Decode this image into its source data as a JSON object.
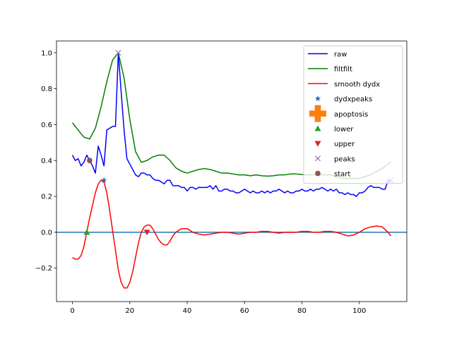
{
  "chart_data": {
    "type": "line",
    "title": "",
    "xlabel": "",
    "ylabel": "",
    "xlim": [
      -5.55,
      116.55
    ],
    "ylim": [
      -0.386,
      1.066
    ],
    "xticks": [
      0,
      20,
      40,
      60,
      80,
      100
    ],
    "xtick_labels": [
      "0",
      "20",
      "40",
      "60",
      "80",
      "100"
    ],
    "yticks": [
      -0.2,
      0.0,
      0.2,
      0.4,
      0.6,
      0.8,
      1.0
    ],
    "ytick_labels": [
      "−0.2",
      "0.0",
      "0.2",
      "0.4",
      "0.6",
      "0.8",
      "1.0"
    ],
    "grid": false,
    "legend_position": "upper-right",
    "hline": {
      "y": 0,
      "color": "#1f77b4"
    },
    "series": [
      {
        "name": "raw",
        "kind": "line",
        "color": "#0000ff",
        "x": [
          0,
          1,
          2,
          3,
          4,
          5,
          6,
          7,
          8,
          9,
          10,
          11,
          12,
          13,
          14,
          15,
          16,
          17,
          18,
          19,
          20,
          21,
          22,
          23,
          24,
          25,
          26,
          27,
          28,
          29,
          30,
          31,
          32,
          33,
          34,
          35,
          36,
          37,
          38,
          39,
          40,
          41,
          42,
          43,
          44,
          45,
          46,
          47,
          48,
          49,
          50,
          51,
          52,
          53,
          54,
          55,
          56,
          57,
          58,
          59,
          60,
          61,
          62,
          63,
          64,
          65,
          66,
          67,
          68,
          69,
          70,
          71,
          72,
          73,
          74,
          75,
          76,
          77,
          78,
          79,
          80,
          81,
          82,
          83,
          84,
          85,
          86,
          87,
          88,
          89,
          90,
          91,
          92,
          93,
          94,
          95,
          96,
          97,
          98,
          99,
          100,
          101,
          102,
          103,
          104,
          105,
          106,
          107,
          108,
          109,
          110,
          111
        ],
        "y": [
          0.43,
          0.4,
          0.41,
          0.37,
          0.39,
          0.43,
          0.4,
          0.37,
          0.33,
          0.48,
          0.43,
          0.37,
          0.57,
          0.58,
          0.59,
          0.59,
          1.0,
          0.78,
          0.57,
          0.41,
          0.38,
          0.35,
          0.32,
          0.31,
          0.33,
          0.33,
          0.32,
          0.32,
          0.3,
          0.29,
          0.29,
          0.28,
          0.27,
          0.29,
          0.29,
          0.26,
          0.26,
          0.26,
          0.25,
          0.25,
          0.23,
          0.25,
          0.25,
          0.24,
          0.25,
          0.25,
          0.25,
          0.25,
          0.26,
          0.24,
          0.26,
          0.23,
          0.23,
          0.24,
          0.24,
          0.23,
          0.23,
          0.22,
          0.22,
          0.23,
          0.24,
          0.23,
          0.22,
          0.23,
          0.22,
          0.22,
          0.23,
          0.22,
          0.23,
          0.22,
          0.23,
          0.23,
          0.24,
          0.23,
          0.22,
          0.23,
          0.22,
          0.22,
          0.23,
          0.23,
          0.24,
          0.23,
          0.23,
          0.24,
          0.23,
          0.24,
          0.24,
          0.25,
          0.24,
          0.23,
          0.24,
          0.23,
          0.24,
          0.22,
          0.22,
          0.21,
          0.22,
          0.21,
          0.21,
          0.2,
          0.22,
          0.22,
          0.23,
          0.25,
          0.26,
          0.25,
          0.25,
          0.25,
          0.24,
          0.24,
          0.29,
          0.28
        ]
      },
      {
        "name": "filtfilt",
        "kind": "line",
        "color": "#008000",
        "x": [
          0,
          2,
          4,
          6,
          8,
          10,
          12,
          14,
          16,
          18,
          20,
          22,
          24,
          26,
          28,
          30,
          32,
          34,
          36,
          38,
          40,
          42,
          44,
          46,
          48,
          50,
          52,
          54,
          56,
          58,
          60,
          62,
          64,
          66,
          68,
          70,
          72,
          74,
          76,
          78,
          80,
          82,
          84,
          86,
          88,
          90,
          92,
          94,
          96,
          98,
          100,
          102,
          104,
          106,
          108,
          110,
          111
        ],
        "y": [
          0.61,
          0.57,
          0.53,
          0.52,
          0.58,
          0.7,
          0.84,
          0.96,
          1.0,
          0.86,
          0.63,
          0.45,
          0.39,
          0.4,
          0.42,
          0.43,
          0.43,
          0.4,
          0.36,
          0.34,
          0.33,
          0.34,
          0.35,
          0.355,
          0.35,
          0.34,
          0.33,
          0.33,
          0.325,
          0.32,
          0.32,
          0.315,
          0.32,
          0.315,
          0.313,
          0.315,
          0.32,
          0.32,
          0.325,
          0.325,
          0.322,
          0.32,
          0.32,
          0.32,
          0.32,
          0.32,
          0.31,
          0.3,
          0.3,
          0.3,
          0.3,
          0.31,
          0.32,
          0.34,
          0.355,
          0.38,
          0.395
        ]
      },
      {
        "name": "smooth dydx",
        "kind": "line",
        "color": "#ff0000",
        "x": [
          0,
          1,
          2,
          3,
          4,
          5,
          6,
          7,
          8,
          9,
          10,
          11,
          12,
          13,
          14,
          15,
          16,
          17,
          18,
          19,
          20,
          21,
          22,
          23,
          24,
          25,
          26,
          27,
          28,
          29,
          30,
          31,
          32,
          33,
          34,
          35,
          36,
          38,
          40,
          42,
          44,
          46,
          48,
          50,
          52,
          54,
          56,
          58,
          60,
          62,
          64,
          66,
          68,
          70,
          72,
          74,
          76,
          78,
          80,
          82,
          84,
          86,
          88,
          90,
          92,
          94,
          96,
          98,
          100,
          102,
          104,
          106,
          108,
          110,
          111
        ],
        "y": [
          -0.14,
          -0.15,
          -0.15,
          -0.13,
          -0.08,
          0.0,
          0.08,
          0.15,
          0.22,
          0.27,
          0.29,
          0.28,
          0.22,
          0.12,
          0.01,
          -0.1,
          -0.21,
          -0.28,
          -0.31,
          -0.31,
          -0.28,
          -0.22,
          -0.14,
          -0.06,
          0.0,
          0.03,
          0.04,
          0.04,
          0.02,
          -0.01,
          -0.04,
          -0.06,
          -0.07,
          -0.07,
          -0.05,
          -0.02,
          0.0,
          0.02,
          0.02,
          0.0,
          -0.01,
          -0.015,
          -0.01,
          -0.005,
          0.0,
          0.0,
          -0.005,
          -0.01,
          -0.005,
          0.0,
          0.0,
          0.005,
          0.005,
          0.0,
          -0.005,
          0.0,
          0.0,
          0.0,
          0.005,
          0.005,
          0.0,
          0.0,
          0.005,
          0.005,
          0.0,
          -0.01,
          -0.02,
          -0.015,
          0.0,
          0.02,
          0.03,
          0.035,
          0.03,
          0.0,
          -0.02
        ]
      },
      {
        "name": "dydxpeaks",
        "kind": "marker",
        "marker": "star",
        "color": "#1f77b4",
        "x": [
          11
        ],
        "y": [
          0.29
        ]
      },
      {
        "name": "apoptosis",
        "kind": "marker",
        "marker": "plus",
        "color": "#ff7f0e",
        "x": [],
        "y": []
      },
      {
        "name": "lower",
        "kind": "marker",
        "marker": "triangle-up",
        "color": "#2ca02c",
        "x": [
          5
        ],
        "y": [
          0.0
        ]
      },
      {
        "name": "upper",
        "kind": "marker",
        "marker": "triangle-down",
        "color": "#d62728",
        "x": [
          26
        ],
        "y": [
          0.0
        ]
      },
      {
        "name": "peaks",
        "kind": "marker",
        "marker": "x",
        "color": "#9467bd",
        "x": [
          16,
          111
        ],
        "y": [
          1.0,
          0.29
        ]
      },
      {
        "name": "start",
        "kind": "marker",
        "marker": "circle",
        "color": "#8c564b",
        "x": [
          6
        ],
        "y": [
          0.4
        ]
      }
    ]
  }
}
